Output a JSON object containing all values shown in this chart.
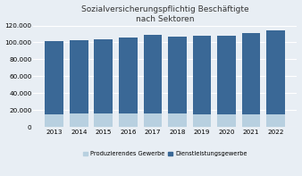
{
  "title_line1": "Sozialversicherungspflichtig Beschäftigte",
  "title_line2": "nach Sektoren",
  "years": [
    2013,
    2014,
    2015,
    2016,
    2017,
    2018,
    2019,
    2020,
    2021,
    2022
  ],
  "produzierendes": [
    15500,
    15800,
    16000,
    16200,
    16500,
    16200,
    15500,
    14800,
    14700,
    14900
  ],
  "dienstleistungs": [
    86000,
    87000,
    88000,
    90000,
    92000,
    90500,
    92000,
    93000,
    96500,
    98800
  ],
  "color_prod": "#b8d0e0",
  "color_dl": "#3a6896",
  "ylim": [
    0,
    120000
  ],
  "yticks": [
    0,
    20000,
    40000,
    60000,
    80000,
    100000,
    120000
  ],
  "legend_prod": "Produzierendes Gewerbe",
  "legend_dl": "Dienstleistungsgewerbe",
  "bar_width": 0.75,
  "figsize": [
    3.38,
    1.97
  ],
  "dpi": 100,
  "title_fontsize": 6.5,
  "tick_fontsize": 5.2,
  "legend_fontsize": 4.8,
  "bg_color": "#e8eef4",
  "plot_bg_color": "#e8eef4"
}
